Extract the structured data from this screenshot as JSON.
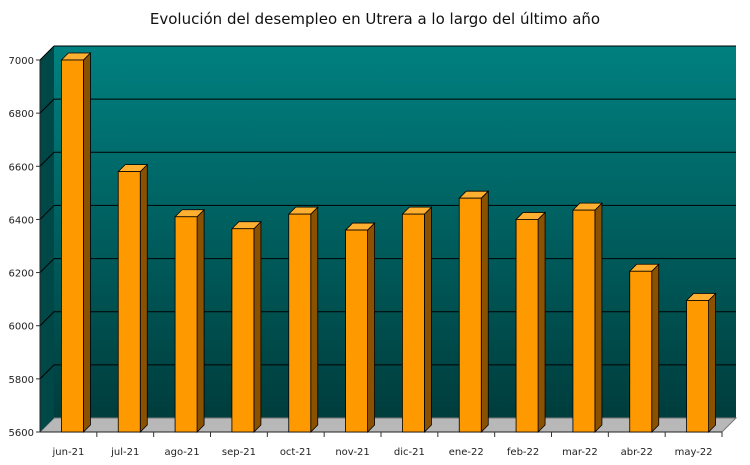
{
  "chart_data": {
    "type": "bar",
    "title": "Evolución del desempleo en Utrera a lo largo del último año",
    "categories": [
      "jun-21",
      "jul-21",
      "ago-21",
      "sep-21",
      "oct-21",
      "nov-21",
      "dic-21",
      "ene-22",
      "feb-22",
      "mar-22",
      "abr-22",
      "may-22"
    ],
    "values": [
      7000,
      6580,
      6410,
      6365,
      6420,
      6360,
      6420,
      6480,
      6400,
      6435,
      6205,
      6095
    ],
    "ylim": [
      5600,
      7000
    ],
    "yticks": [
      5600,
      5800,
      6000,
      6200,
      6400,
      6600,
      6800,
      7000
    ],
    "grid": true,
    "colors": {
      "bar_front": "#ff9900",
      "bar_top": "#ffb030",
      "bar_side": "#8a5200",
      "background_top": "#008080",
      "background_bottom": "#003a3a"
    }
  }
}
